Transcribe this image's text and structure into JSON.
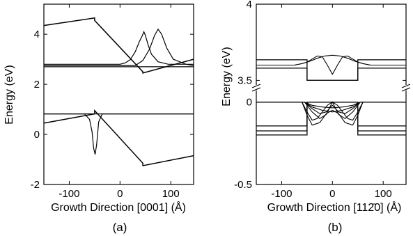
{
  "chart_data": [
    {
      "type": "line",
      "panel_label": "(a)",
      "xlabel": "Growth Direction [0001] (Å)",
      "ylabel": "Energy (eV)",
      "xlim": [
        -150,
        145
      ],
      "ylim": [
        -2,
        5.2
      ],
      "xticks": [
        -100,
        0,
        100
      ],
      "yticks": [
        -2,
        0,
        2,
        4
      ],
      "grid": false,
      "series": [
        {
          "role": "conduction-band-edge",
          "x": [
            -150,
            -50,
            -50,
            45,
            45,
            145
          ],
          "y": [
            4.35,
            4.65,
            4.55,
            2.5,
            2.45,
            3.0
          ]
        },
        {
          "role": "valence-band-edge",
          "x": [
            -150,
            -50,
            -50,
            45,
            45,
            145
          ],
          "y": [
            0.45,
            0.82,
            0.95,
            -1.15,
            -1.25,
            -0.85
          ]
        },
        {
          "role": "flat-level-upper",
          "x": [
            -150,
            145
          ],
          "y": [
            2.7,
            2.7
          ]
        },
        {
          "role": "flat-level-lower",
          "x": [
            -150,
            145
          ],
          "y": [
            0.82,
            0.82
          ]
        },
        {
          "role": "electron-wavefunction-1",
          "x": [
            -150,
            0,
            10,
            20,
            30,
            38,
            44,
            47,
            50,
            55,
            62,
            75,
            95,
            145
          ],
          "y": [
            2.8,
            2.8,
            2.85,
            2.98,
            3.3,
            3.7,
            3.95,
            4.1,
            3.95,
            3.6,
            3.2,
            2.9,
            2.8,
            2.8
          ]
        },
        {
          "role": "electron-wavefunction-2",
          "x": [
            -150,
            30,
            45,
            58,
            68,
            75,
            82,
            92,
            105,
            130,
            145
          ],
          "y": [
            2.75,
            2.75,
            2.95,
            3.4,
            3.95,
            4.2,
            4.0,
            3.45,
            3.0,
            2.8,
            2.75
          ]
        },
        {
          "role": "hole-wavefunction",
          "x": [
            -150,
            -70,
            -60,
            -55,
            -52,
            -49,
            -46,
            -42,
            -35,
            145
          ],
          "y": [
            0.82,
            0.82,
            0.6,
            0.1,
            -0.55,
            -0.8,
            -0.4,
            0.5,
            0.82,
            0.82
          ]
        }
      ]
    },
    {
      "type": "line",
      "panel_label": "(b)",
      "xlabel": "Growth Direction [112̄0] (Å)",
      "ylabel": "Energy (eV)",
      "xlim": [
        -150,
        145
      ],
      "ylim_broken_axis": {
        "upper": [
          3.47,
          4.0
        ],
        "lower": [
          -0.5,
          0.07
        ]
      },
      "xticks": [
        -100,
        0,
        100
      ],
      "yticks": [
        -0.5,
        0,
        3.5,
        4
      ],
      "grid": false,
      "series": [
        {
          "role": "conduction-band-edge-1",
          "x": [
            -150,
            -50,
            -50,
            50,
            50,
            145
          ],
          "y": [
            3.635,
            3.635,
            3.5,
            3.5,
            3.635,
            3.635
          ]
        },
        {
          "role": "conduction-band-edge-2",
          "x": [
            -150,
            -50,
            -50,
            50,
            50,
            145
          ],
          "y": [
            3.58,
            3.58,
            3.5,
            3.5,
            3.58,
            3.58
          ]
        },
        {
          "role": "electron-wavefunction-1",
          "x": [
            -150,
            -75,
            -60,
            -50,
            -40,
            -30,
            -20,
            -10,
            0,
            10,
            20,
            30,
            40,
            50,
            60,
            75,
            145
          ],
          "y": [
            3.6,
            3.6,
            3.61,
            3.62,
            3.64,
            3.66,
            3.655,
            3.6,
            3.54,
            3.6,
            3.655,
            3.66,
            3.64,
            3.62,
            3.61,
            3.6,
            3.6
          ]
        },
        {
          "role": "electron-wavefunction-2",
          "x": [
            -150,
            -75,
            -60,
            -45,
            -30,
            -15,
            0,
            15,
            30,
            45,
            60,
            75,
            145
          ],
          "y": [
            3.6,
            3.6,
            3.61,
            3.625,
            3.645,
            3.66,
            3.665,
            3.66,
            3.645,
            3.625,
            3.61,
            3.6,
            3.6
          ]
        },
        {
          "role": "valence-band-edge-1",
          "x": [
            -150,
            -50,
            -50,
            50,
            50,
            145
          ],
          "y": [
            -0.145,
            -0.145,
            0.0,
            0.0,
            -0.145,
            -0.145
          ]
        },
        {
          "role": "valence-band-edge-2",
          "x": [
            -150,
            -50,
            -50,
            50,
            50,
            145
          ],
          "y": [
            -0.175,
            -0.175,
            0.0,
            0.0,
            -0.175,
            -0.175
          ]
        },
        {
          "role": "valence-band-edge-3",
          "x": [
            -150,
            -50,
            -50,
            50,
            50,
            145
          ],
          "y": [
            -0.2,
            -0.2,
            0.0,
            0.0,
            -0.2,
            -0.2
          ]
        },
        {
          "role": "hole-wavefunction-1",
          "x": [
            -150,
            -55,
            -40,
            -20,
            0,
            20,
            40,
            55,
            145
          ],
          "y": [
            0.0,
            0.0,
            -0.02,
            -0.03,
            -0.035,
            -0.03,
            -0.02,
            0.0,
            0.0
          ]
        },
        {
          "role": "hole-wavefunction-2",
          "x": [
            -150,
            -55,
            -40,
            -20,
            0,
            20,
            40,
            55,
            145
          ],
          "y": [
            0.0,
            0.0,
            -0.03,
            -0.05,
            -0.06,
            -0.05,
            -0.03,
            0.0,
            0.0
          ]
        },
        {
          "role": "hole-wavefunction-3",
          "x": [
            -150,
            -55,
            -40,
            -25,
            -12,
            0,
            12,
            25,
            40,
            55,
            145
          ],
          "y": [
            0.0,
            0.0,
            -0.04,
            -0.07,
            -0.06,
            -0.02,
            -0.06,
            -0.07,
            -0.04,
            0.0,
            0.0
          ]
        },
        {
          "role": "hole-wavefunction-4",
          "x": [
            -150,
            -55,
            -40,
            -25,
            -12,
            0,
            12,
            25,
            40,
            55,
            145
          ],
          "y": [
            0.0,
            0.0,
            -0.06,
            -0.1,
            -0.075,
            0.0,
            -0.075,
            -0.1,
            -0.06,
            0.0,
            0.0
          ]
        },
        {
          "role": "hole-wavefunction-5",
          "x": [
            -150,
            -60,
            -50,
            -40,
            -30,
            -20,
            -10,
            0,
            10,
            20,
            30,
            40,
            50,
            60,
            145
          ],
          "y": [
            0.0,
            0.0,
            -0.06,
            -0.11,
            -0.1,
            -0.06,
            -0.02,
            0.0,
            -0.02,
            -0.06,
            -0.1,
            -0.11,
            -0.06,
            0.0,
            0.0
          ]
        },
        {
          "role": "hole-wavefunction-6",
          "x": [
            -150,
            -60,
            -50,
            -40,
            -25,
            -12,
            0,
            12,
            25,
            40,
            50,
            60,
            145
          ],
          "y": [
            0.0,
            0.0,
            -0.08,
            -0.14,
            -0.125,
            -0.07,
            -0.05,
            -0.07,
            -0.125,
            -0.14,
            -0.08,
            0.0,
            0.0
          ]
        }
      ]
    }
  ]
}
